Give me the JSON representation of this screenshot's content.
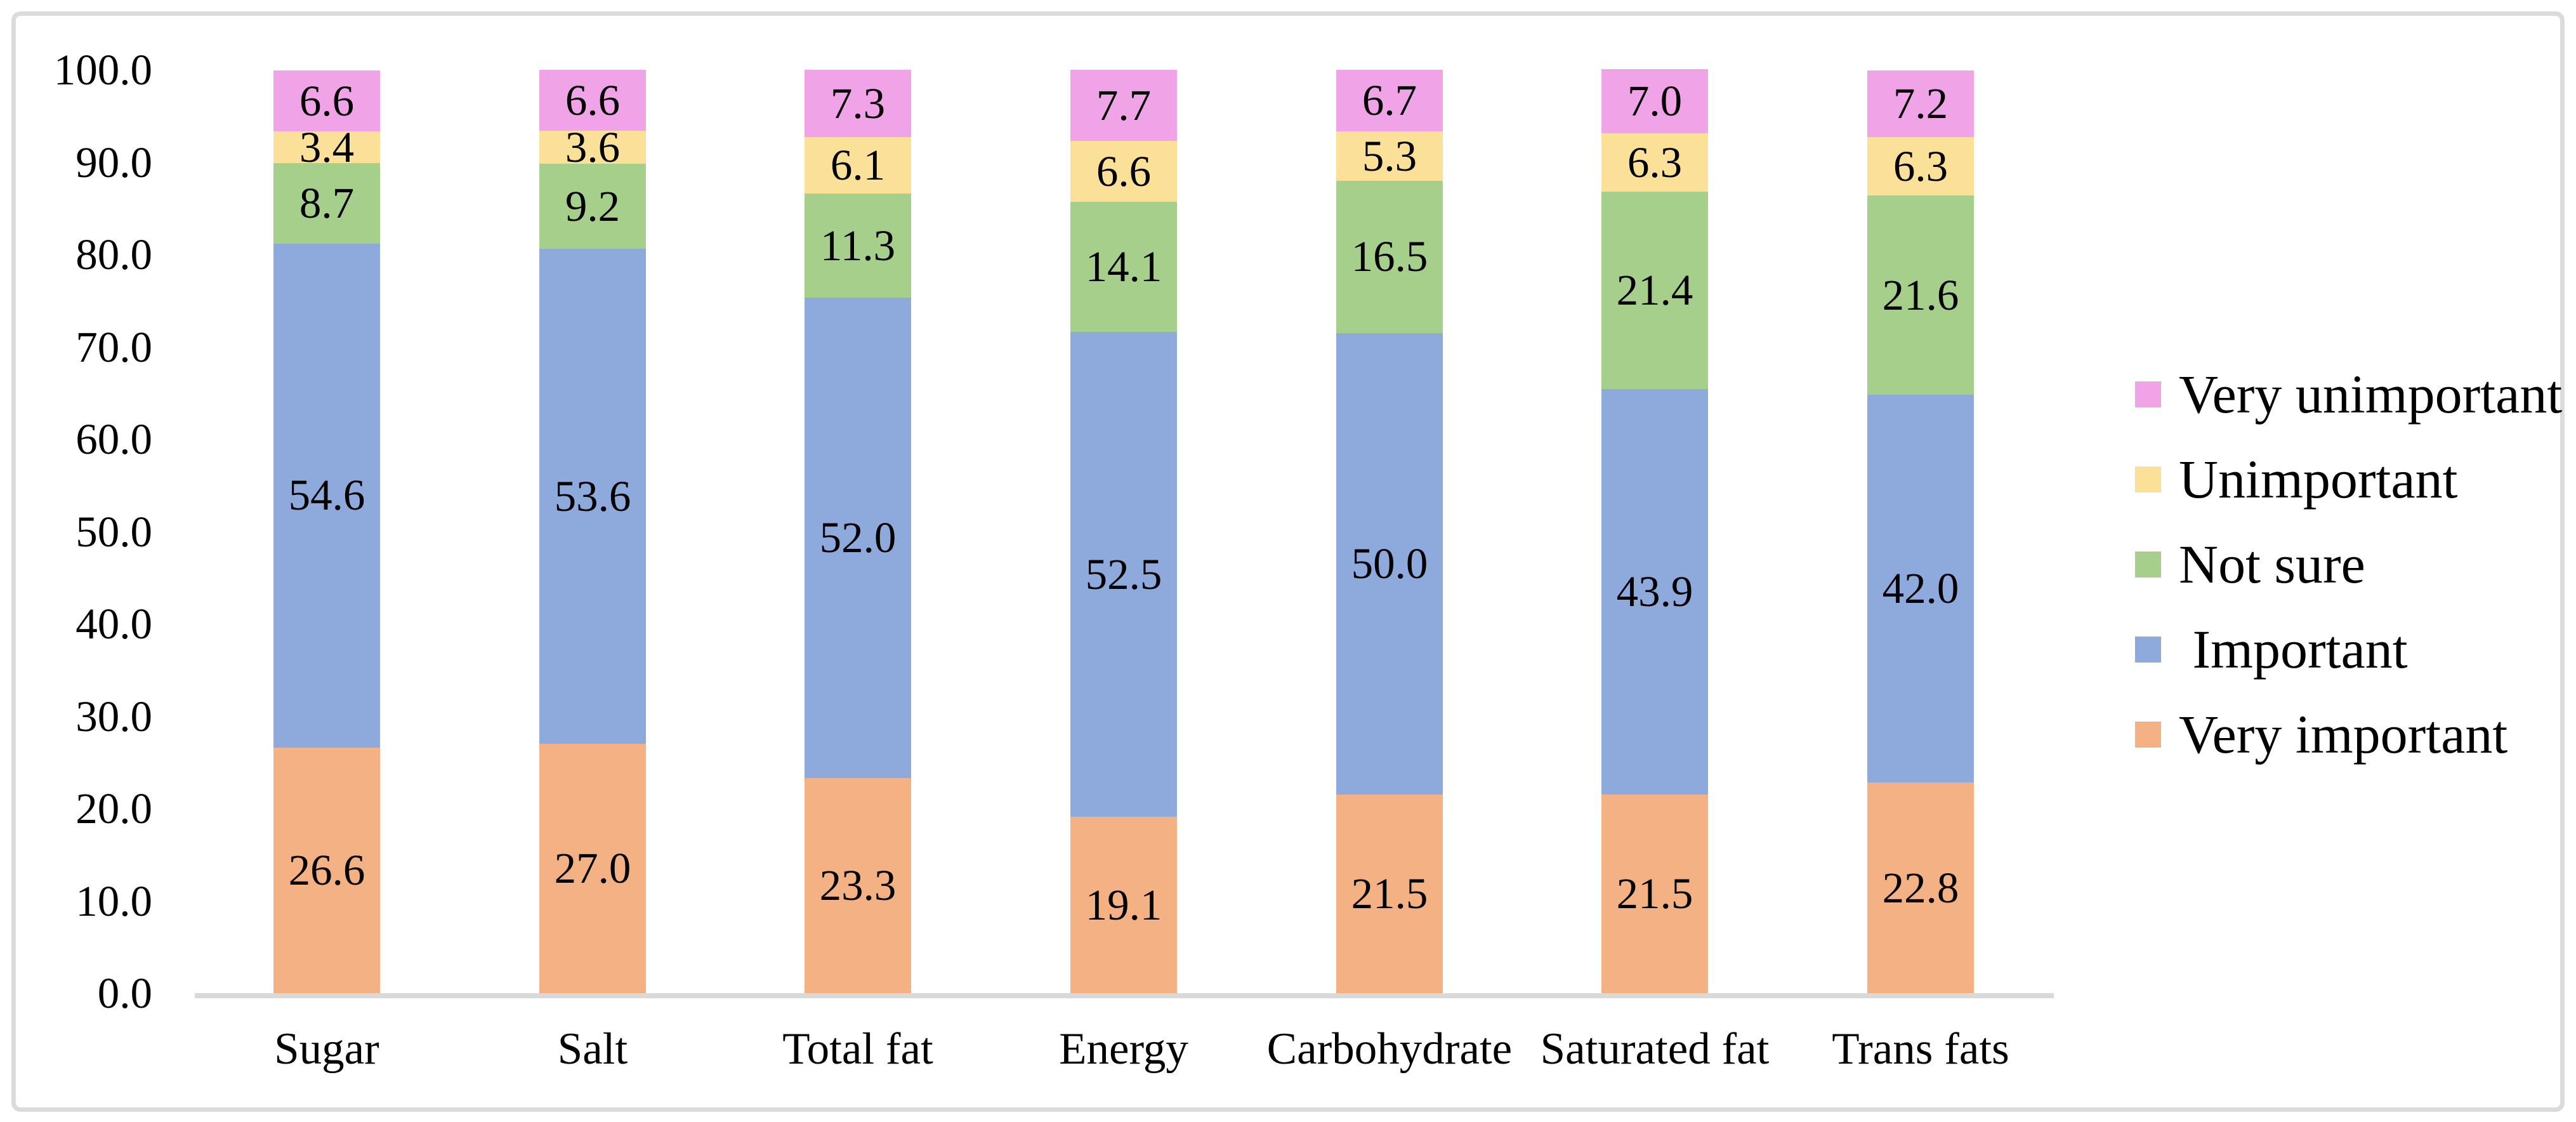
{
  "chart_data": {
    "type": "bar",
    "subtype": "stacked-100-column",
    "title": "",
    "categories": [
      "Sugar",
      "Salt",
      "Total fat",
      "Energy",
      "Carbohydrate",
      "Saturated fat",
      "Trans fats"
    ],
    "series": [
      {
        "name": "Very important",
        "color": "#F4B183",
        "values": [
          26.6,
          27.0,
          23.3,
          19.1,
          21.5,
          21.5,
          22.8
        ],
        "value_labels": [
          "26.6",
          "27.0",
          "23.3",
          "19.1",
          "21.5",
          "21.5",
          "22.8"
        ]
      },
      {
        "name": "Important",
        "color": "#8EA9DB",
        "values": [
          54.6,
          53.6,
          52.0,
          52.5,
          50.0,
          43.9,
          42.0
        ],
        "value_labels": [
          "54.6",
          "53.6",
          "52.0",
          "52.5",
          "50.0",
          "43.9",
          "42.0"
        ]
      },
      {
        "name": "Not sure",
        "color": "#A6CF8C",
        "values": [
          8.7,
          9.2,
          11.3,
          14.1,
          16.5,
          21.4,
          21.6
        ],
        "value_labels": [
          "8.7",
          "9.2",
          "11.3",
          "14.1",
          "16.5",
          "21.4",
          "21.6"
        ]
      },
      {
        "name": "Unimportant",
        "color": "#FBE098",
        "values": [
          3.4,
          3.6,
          6.1,
          6.6,
          5.3,
          6.3,
          6.3
        ],
        "value_labels": [
          "3.4",
          "3.6",
          "6.1",
          "6.6",
          "5.3",
          "6.3",
          "6.3"
        ]
      },
      {
        "name": "Very unimportant",
        "color": "#F0A4E7",
        "values": [
          6.6,
          6.6,
          7.3,
          7.7,
          6.7,
          7.0,
          7.2
        ],
        "value_labels": [
          "6.6",
          "6.6",
          "7.3",
          "7.7",
          "6.7",
          "7.0",
          "7.2"
        ]
      }
    ],
    "y_axis": {
      "min": 0,
      "max": 100,
      "tick_step": 10,
      "tick_labels": [
        "0.0",
        "10.0",
        "20.0",
        "30.0",
        "40.0",
        "50.0",
        "60.0",
        "70.0",
        "80.0",
        "90.0",
        "100.0"
      ]
    },
    "grid": false,
    "legend_position": "right",
    "legend": [
      {
        "label": "Very unimportant",
        "color": "#F0A4E7"
      },
      {
        "label": "Unimportant",
        "color": "#FBE098"
      },
      {
        "label": "Not sure",
        "color": "#A6CF8C"
      },
      {
        "label": " Important",
        "color": "#8EA9DB"
      },
      {
        "label": "Very important",
        "color": "#F4B183"
      }
    ],
    "axis_line_color": "#D9D9D9",
    "border_color": "#DBDBDB"
  }
}
